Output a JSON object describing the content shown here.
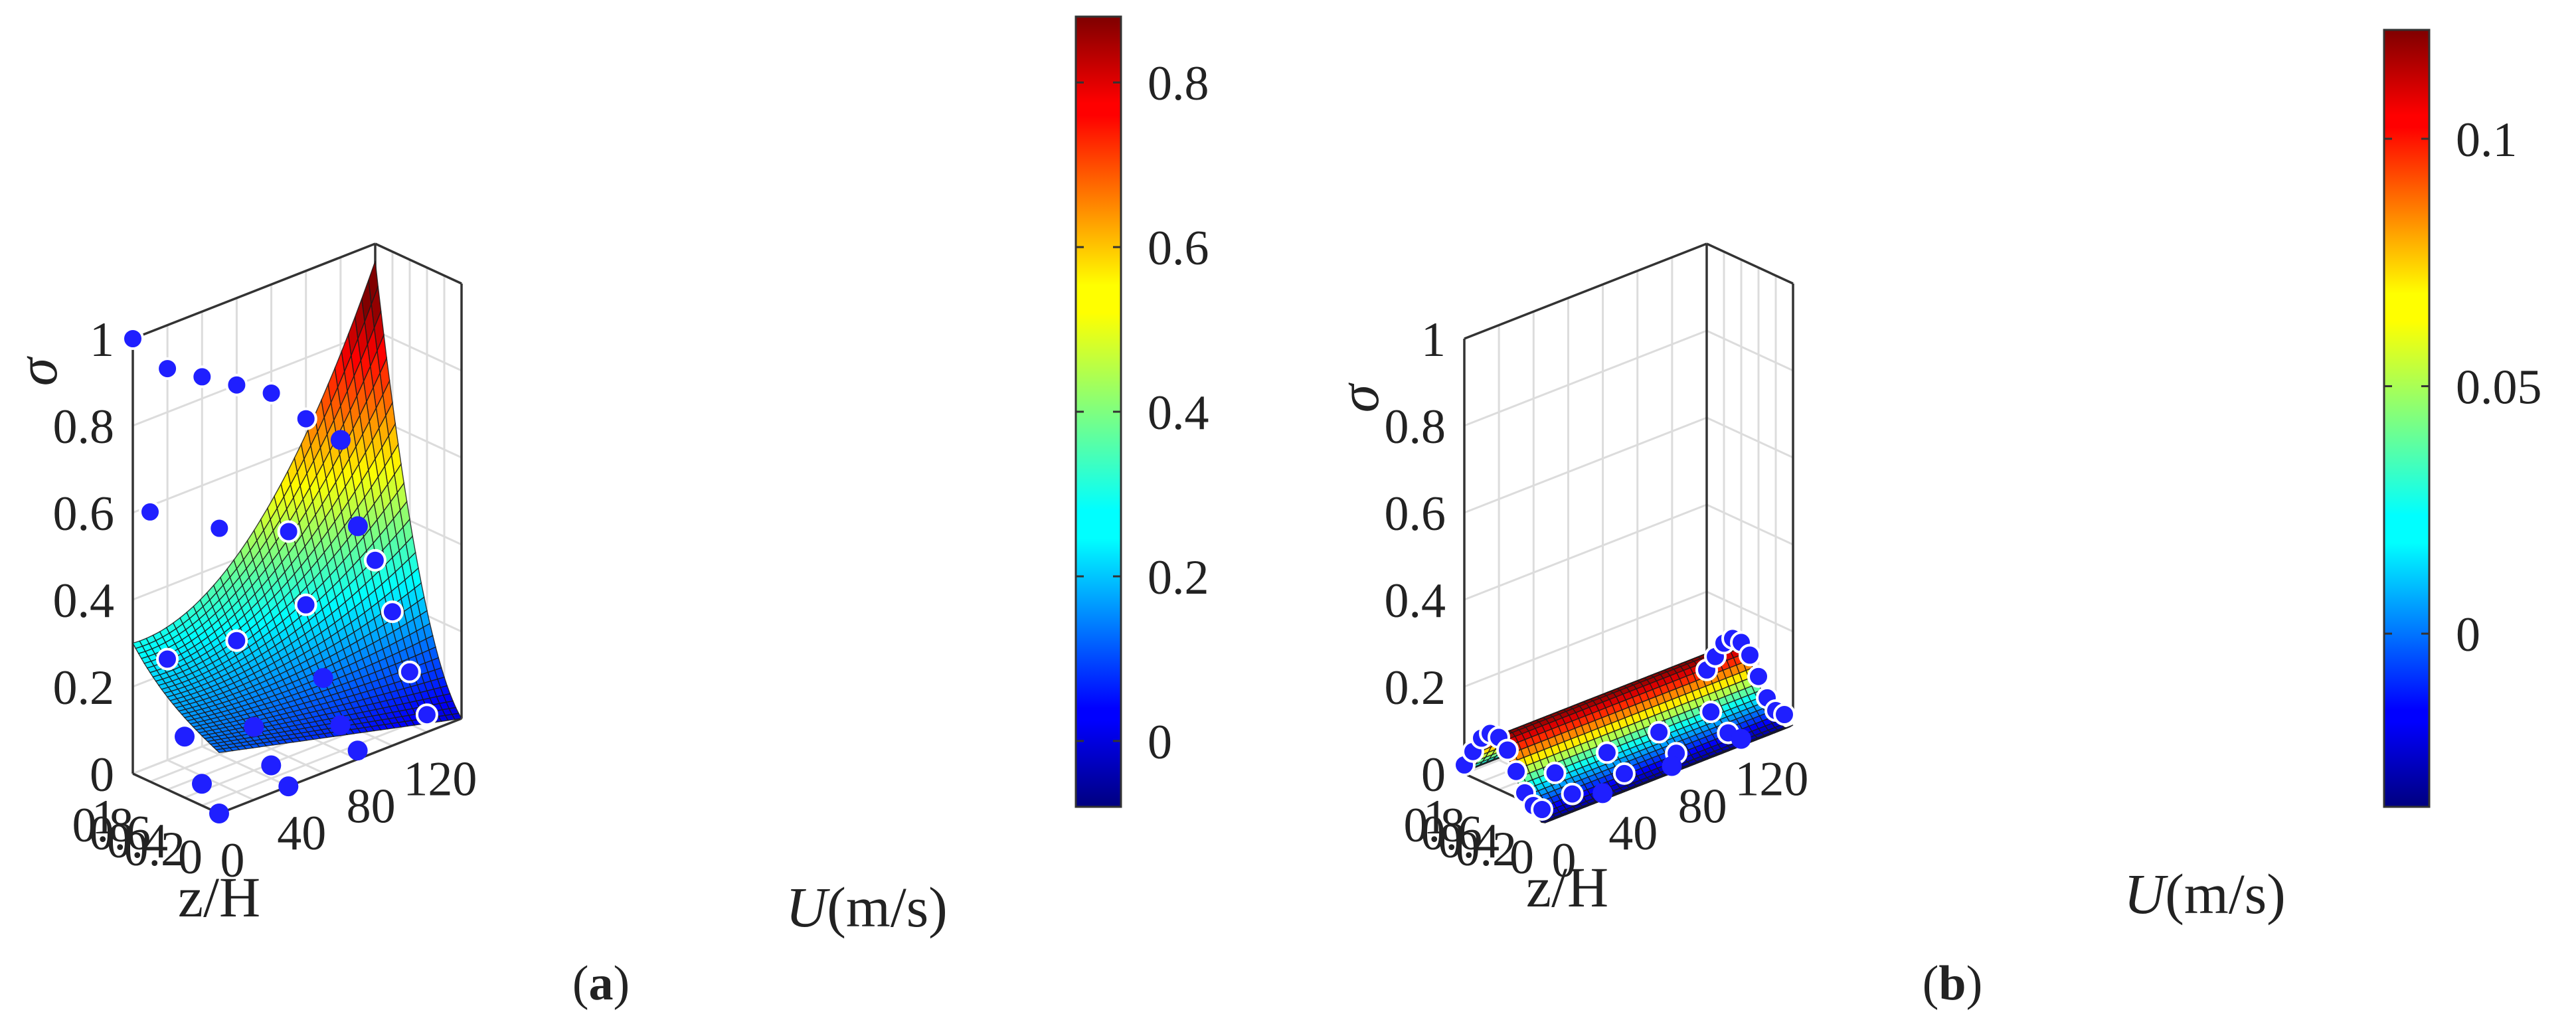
{
  "chart_data": [
    {
      "type": "surface3d",
      "panel_label": "a",
      "xlabel": "z/H",
      "ylabel_italic": "U",
      "ylabel_unit": "(m/s)",
      "zlabel": "σ",
      "xlim": [
        0,
        1
      ],
      "ylim": [
        0,
        140
      ],
      "zlim": [
        0,
        1
      ],
      "x_ticks": [
        "0",
        "0.2",
        "0.4",
        "0.6",
        "0.8",
        "1"
      ],
      "y_ticks": [
        "0",
        "40",
        "80",
        "120"
      ],
      "z_ticks": [
        "0",
        "0.2",
        "0.4",
        "0.6",
        "0.8",
        "1"
      ],
      "colorbar": {
        "min": -0.08,
        "max": 0.88,
        "ticks": [
          "0",
          "0.2",
          "0.4",
          "0.6",
          "0.8"
        ],
        "colormap": "jet"
      },
      "points": [
        {
          "z": 1.0,
          "u": 0,
          "s": 1.0
        },
        {
          "z": 1.0,
          "u": 20,
          "s": 0.9
        },
        {
          "z": 1.0,
          "u": 40,
          "s": 0.85
        },
        {
          "z": 1.0,
          "u": 60,
          "s": 0.8
        },
        {
          "z": 1.0,
          "u": 80,
          "s": 0.75
        },
        {
          "z": 1.0,
          "u": 100,
          "s": 0.66
        },
        {
          "z": 1.0,
          "u": 120,
          "s": 0.58
        },
        {
          "z": 0.8,
          "u": 0,
          "s": 0.62
        },
        {
          "z": 0.8,
          "u": 40,
          "s": 0.52
        },
        {
          "z": 0.8,
          "u": 80,
          "s": 0.45
        },
        {
          "z": 0.8,
          "u": 120,
          "s": 0.4
        },
        {
          "z": 0.6,
          "u": 0,
          "s": 0.3
        },
        {
          "z": 0.6,
          "u": 40,
          "s": 0.28
        },
        {
          "z": 0.6,
          "u": 80,
          "s": 0.3
        },
        {
          "z": 0.6,
          "u": 120,
          "s": 0.34
        },
        {
          "z": 0.4,
          "u": 0,
          "s": 0.14
        },
        {
          "z": 0.4,
          "u": 40,
          "s": 0.1
        },
        {
          "z": 0.4,
          "u": 80,
          "s": 0.15
        },
        {
          "z": 0.4,
          "u": 120,
          "s": 0.24
        },
        {
          "z": 0.2,
          "u": 0,
          "s": 0.05
        },
        {
          "z": 0.2,
          "u": 40,
          "s": 0.03
        },
        {
          "z": 0.2,
          "u": 80,
          "s": 0.06
        },
        {
          "z": 0.2,
          "u": 120,
          "s": 0.12
        },
        {
          "z": 0.0,
          "u": 0,
          "s": 0.0
        },
        {
          "z": 0.0,
          "u": 40,
          "s": 0.0
        },
        {
          "z": 0.0,
          "u": 80,
          "s": 0.02
        },
        {
          "z": 0.0,
          "u": 120,
          "s": 0.04
        }
      ]
    },
    {
      "type": "surface3d",
      "panel_label": "b",
      "xlabel": "z/H",
      "ylabel_italic": "U",
      "ylabel_unit": "(m/s)",
      "zlabel": "σ",
      "xlim": [
        0,
        1
      ],
      "ylim": [
        0,
        140
      ],
      "zlim": [
        0,
        1
      ],
      "x_ticks": [
        "0",
        "0.2",
        "0.4",
        "0.6",
        "0.8",
        "1"
      ],
      "y_ticks": [
        "0",
        "40",
        "80",
        "120"
      ],
      "z_ticks": [
        "0",
        "0.2",
        "0.4",
        "0.6",
        "0.8",
        "1"
      ],
      "colorbar": {
        "min": -0.035,
        "max": 0.122,
        "ticks": [
          "0",
          "0.05",
          "0.1"
        ],
        "colormap": "jet"
      },
      "points": [
        {
          "z": 1.0,
          "u": 0,
          "s": 0.02
        },
        {
          "z": 0.9,
          "u": 0,
          "s": 0.06
        },
        {
          "z": 0.8,
          "u": 0,
          "s": 0.1
        },
        {
          "z": 0.7,
          "u": 0,
          "s": 0.12
        },
        {
          "z": 0.6,
          "u": 0,
          "s": 0.12
        },
        {
          "z": 0.5,
          "u": 0,
          "s": 0.1
        },
        {
          "z": 0.4,
          "u": 0,
          "s": 0.06
        },
        {
          "z": 0.3,
          "u": 0,
          "s": 0.02
        },
        {
          "z": 0.2,
          "u": 0,
          "s": -0.01
        },
        {
          "z": 0.1,
          "u": 0,
          "s": -0.02
        },
        {
          "z": 1.0,
          "u": 140,
          "s": 0.02
        },
        {
          "z": 0.9,
          "u": 140,
          "s": 0.06
        },
        {
          "z": 0.8,
          "u": 140,
          "s": 0.1
        },
        {
          "z": 0.7,
          "u": 140,
          "s": 0.12
        },
        {
          "z": 0.6,
          "u": 140,
          "s": 0.12
        },
        {
          "z": 0.5,
          "u": 140,
          "s": 0.1
        },
        {
          "z": 0.4,
          "u": 140,
          "s": 0.06
        },
        {
          "z": 0.3,
          "u": 140,
          "s": 0.02
        },
        {
          "z": 0.2,
          "u": 140,
          "s": -0.01
        },
        {
          "z": 0.1,
          "u": 140,
          "s": -0.02
        },
        {
          "z": 0.35,
          "u": 20,
          "s": 0.03
        },
        {
          "z": 0.35,
          "u": 50,
          "s": 0.03
        },
        {
          "z": 0.35,
          "u": 80,
          "s": 0.03
        },
        {
          "z": 0.35,
          "u": 110,
          "s": 0.03
        },
        {
          "z": 0.15,
          "u": 20,
          "s": -0.02
        },
        {
          "z": 0.15,
          "u": 50,
          "s": -0.02
        },
        {
          "z": 0.15,
          "u": 80,
          "s": -0.02
        },
        {
          "z": 0.15,
          "u": 110,
          "s": -0.02
        },
        {
          "z": 0.0,
          "u": 30,
          "s": -0.03
        },
        {
          "z": 0.0,
          "u": 70,
          "s": -0.03
        },
        {
          "z": 0.0,
          "u": 110,
          "s": -0.03
        }
      ]
    }
  ],
  "colors": {
    "point_fill": "#1f1fff",
    "point_stroke": "#ffffff",
    "grid": "#dcdcdc",
    "mesh": "#1a1a1a"
  }
}
